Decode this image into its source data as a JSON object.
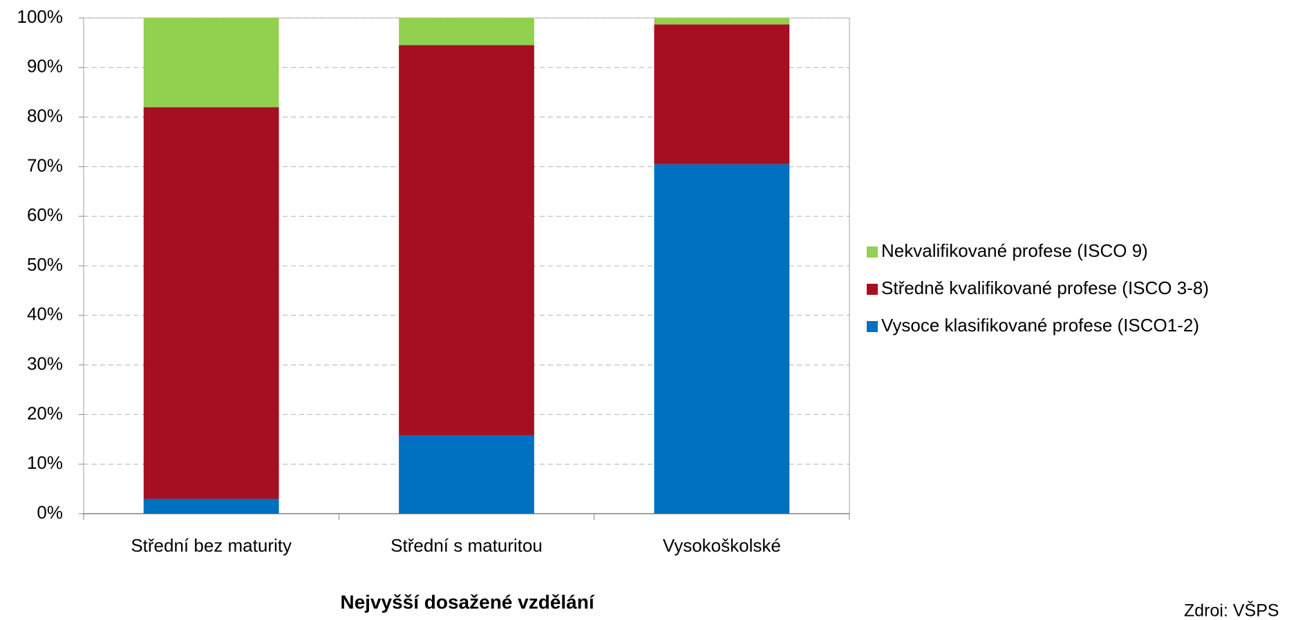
{
  "chart_data": {
    "type": "stacked_bar",
    "categories": [
      "Střední bez maturity",
      "Střední s maturitou",
      "Vysokoškolské"
    ],
    "series": [
      {
        "name": "Vysoce klasifikované profese (ISCO1-2)",
        "color": "#0070c0",
        "values": [
          3,
          15.8,
          70.5
        ]
      },
      {
        "name": "Středně kvalifikované profese (ISCO 3-8)",
        "color": "#a50f21",
        "values": [
          79,
          78.7,
          28.2
        ]
      },
      {
        "name": "Nekvalifikované profese (ISCO 9)",
        "color": "#92d050",
        "values": [
          18,
          5.5,
          1.3
        ]
      }
    ],
    "x_label": "Nejvyšší dosažené vzdělání",
    "source": "Zdroj: VŠPS",
    "ylim": [
      0,
      100
    ],
    "yticks": [
      {
        "value": 0,
        "label": "0%"
      },
      {
        "value": 10,
        "label": "10%"
      },
      {
        "value": 20,
        "label": "20%"
      },
      {
        "value": 30,
        "label": "30%"
      },
      {
        "value": 40,
        "label": "40%"
      },
      {
        "value": 50,
        "label": "50%"
      },
      {
        "value": 60,
        "label": "60%"
      },
      {
        "value": 70,
        "label": "70%"
      },
      {
        "value": 80,
        "label": "80%"
      },
      {
        "value": 90,
        "label": "90%"
      },
      {
        "value": 100,
        "label": "100%"
      }
    ],
    "grid": true,
    "legend": "right"
  }
}
